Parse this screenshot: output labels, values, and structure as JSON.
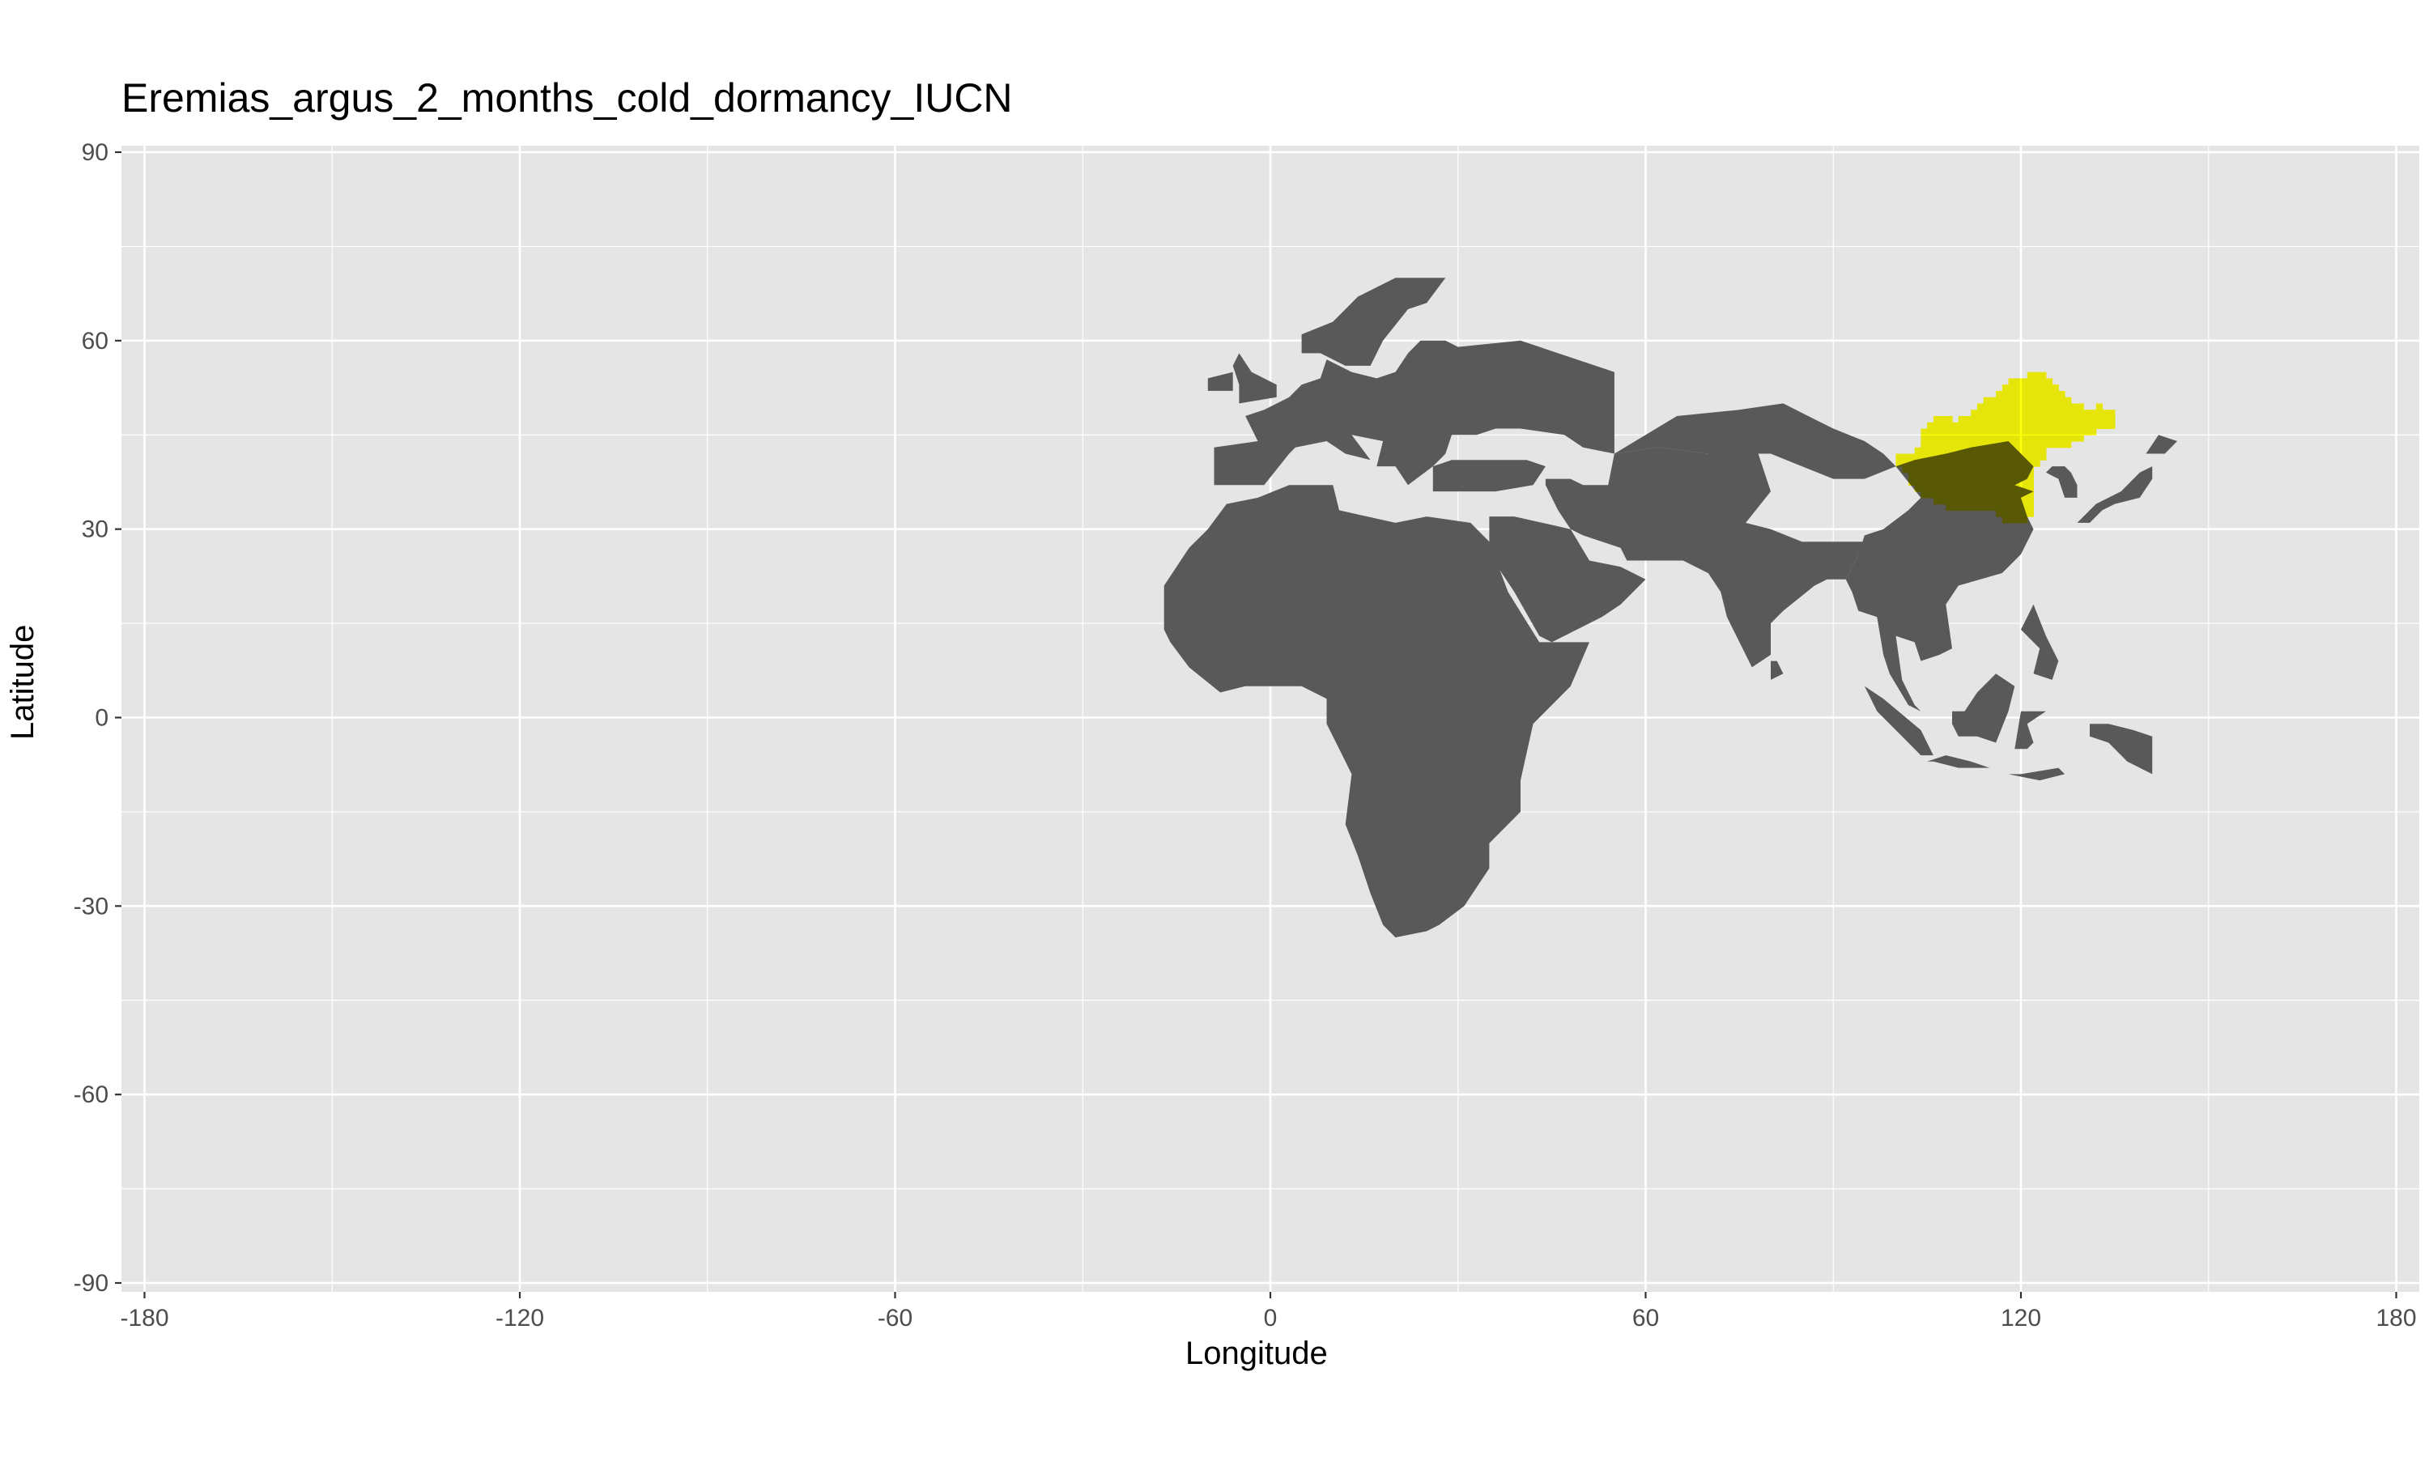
{
  "title": "Eremias_argus_2_months_cold_dormancy_IUCN",
  "x_axis": {
    "label": "Longitude",
    "ticks": [
      "-180",
      "-120",
      "-60",
      "0",
      "60",
      "120",
      "180"
    ]
  },
  "y_axis": {
    "label": "Latitude",
    "ticks": [
      "-90",
      "-60",
      "-30",
      "0",
      "30",
      "60",
      "90"
    ]
  },
  "map": {
    "extent": {
      "lon": [
        -180,
        180
      ],
      "lat": [
        -90,
        90
      ]
    },
    "background_color": "#e5e5e5",
    "grid_color": "#ffffff",
    "land_color": "#595959",
    "range_color": "#ffff00",
    "range_overlap_color": "#6b6b00",
    "layers": [
      "land-raster (Africa, Europe, Asia, Indonesia)",
      "species-range-raster (Eremias argus, IUCN)"
    ],
    "range_cells_lon_lat": [
      [
        100,
        41
      ],
      [
        100,
        40
      ],
      [
        101,
        41
      ],
      [
        101,
        40
      ],
      [
        101,
        39
      ],
      [
        102,
        41
      ],
      [
        102,
        40
      ],
      [
        102,
        39
      ],
      [
        102,
        38
      ],
      [
        102,
        37
      ],
      [
        103,
        42
      ],
      [
        103,
        41
      ],
      [
        103,
        40
      ],
      [
        103,
        39
      ],
      [
        103,
        38
      ],
      [
        103,
        37
      ],
      [
        103,
        36
      ],
      [
        104,
        45
      ],
      [
        104,
        44
      ],
      [
        104,
        43
      ],
      [
        104,
        42
      ],
      [
        104,
        41
      ],
      [
        104,
        40
      ],
      [
        104,
        39
      ],
      [
        104,
        38
      ],
      [
        104,
        37
      ],
      [
        104,
        36
      ],
      [
        104,
        35
      ],
      [
        105,
        46
      ],
      [
        105,
        45
      ],
      [
        105,
        44
      ],
      [
        105,
        43
      ],
      [
        105,
        42
      ],
      [
        105,
        41
      ],
      [
        105,
        40
      ],
      [
        105,
        39
      ],
      [
        105,
        38
      ],
      [
        105,
        37
      ],
      [
        105,
        36
      ],
      [
        105,
        35
      ],
      [
        106,
        47
      ],
      [
        106,
        46
      ],
      [
        106,
        45
      ],
      [
        106,
        44
      ],
      [
        106,
        43
      ],
      [
        106,
        42
      ],
      [
        106,
        41
      ],
      [
        106,
        40
      ],
      [
        106,
        39
      ],
      [
        106,
        38
      ],
      [
        106,
        37
      ],
      [
        106,
        36
      ],
      [
        106,
        35
      ],
      [
        106,
        34
      ],
      [
        107,
        47
      ],
      [
        107,
        46
      ],
      [
        107,
        45
      ],
      [
        107,
        44
      ],
      [
        107,
        43
      ],
      [
        107,
        42
      ],
      [
        107,
        41
      ],
      [
        107,
        40
      ],
      [
        107,
        39
      ],
      [
        107,
        38
      ],
      [
        107,
        37
      ],
      [
        107,
        36
      ],
      [
        107,
        35
      ],
      [
        107,
        34
      ],
      [
        108,
        47
      ],
      [
        108,
        46
      ],
      [
        108,
        45
      ],
      [
        108,
        44
      ],
      [
        108,
        43
      ],
      [
        108,
        42
      ],
      [
        108,
        41
      ],
      [
        108,
        40
      ],
      [
        108,
        39
      ],
      [
        108,
        38
      ],
      [
        108,
        37
      ],
      [
        108,
        36
      ],
      [
        108,
        35
      ],
      [
        108,
        34
      ],
      [
        108,
        33
      ],
      [
        109,
        46
      ],
      [
        109,
        45
      ],
      [
        109,
        44
      ],
      [
        109,
        43
      ],
      [
        109,
        42
      ],
      [
        109,
        41
      ],
      [
        109,
        40
      ],
      [
        109,
        39
      ],
      [
        109,
        38
      ],
      [
        109,
        37
      ],
      [
        109,
        36
      ],
      [
        109,
        35
      ],
      [
        109,
        34
      ],
      [
        109,
        33
      ],
      [
        110,
        47
      ],
      [
        110,
        46
      ],
      [
        110,
        45
      ],
      [
        110,
        44
      ],
      [
        110,
        43
      ],
      [
        110,
        42
      ],
      [
        110,
        41
      ],
      [
        110,
        40
      ],
      [
        110,
        39
      ],
      [
        110,
        38
      ],
      [
        110,
        37
      ],
      [
        110,
        36
      ],
      [
        110,
        35
      ],
      [
        110,
        34
      ],
      [
        110,
        33
      ],
      [
        111,
        47
      ],
      [
        111,
        46
      ],
      [
        111,
        45
      ],
      [
        111,
        44
      ],
      [
        111,
        43
      ],
      [
        111,
        42
      ],
      [
        111,
        41
      ],
      [
        111,
        40
      ],
      [
        111,
        39
      ],
      [
        111,
        38
      ],
      [
        111,
        37
      ],
      [
        111,
        36
      ],
      [
        111,
        35
      ],
      [
        111,
        34
      ],
      [
        111,
        33
      ],
      [
        112,
        48
      ],
      [
        112,
        47
      ],
      [
        112,
        46
      ],
      [
        112,
        45
      ],
      [
        112,
        44
      ],
      [
        112,
        43
      ],
      [
        112,
        42
      ],
      [
        112,
        41
      ],
      [
        112,
        40
      ],
      [
        112,
        39
      ],
      [
        112,
        38
      ],
      [
        112,
        37
      ],
      [
        112,
        36
      ],
      [
        112,
        35
      ],
      [
        112,
        34
      ],
      [
        112,
        33
      ],
      [
        113,
        49
      ],
      [
        113,
        48
      ],
      [
        113,
        47
      ],
      [
        113,
        46
      ],
      [
        113,
        45
      ],
      [
        113,
        44
      ],
      [
        113,
        43
      ],
      [
        113,
        42
      ],
      [
        113,
        41
      ],
      [
        113,
        40
      ],
      [
        113,
        39
      ],
      [
        113,
        38
      ],
      [
        113,
        37
      ],
      [
        113,
        36
      ],
      [
        113,
        35
      ],
      [
        113,
        34
      ],
      [
        113,
        33
      ],
      [
        114,
        50
      ],
      [
        114,
        49
      ],
      [
        114,
        48
      ],
      [
        114,
        47
      ],
      [
        114,
        46
      ],
      [
        114,
        45
      ],
      [
        114,
        44
      ],
      [
        114,
        43
      ],
      [
        114,
        42
      ],
      [
        114,
        41
      ],
      [
        114,
        40
      ],
      [
        114,
        39
      ],
      [
        114,
        38
      ],
      [
        114,
        37
      ],
      [
        114,
        36
      ],
      [
        114,
        35
      ],
      [
        114,
        34
      ],
      [
        114,
        33
      ],
      [
        115,
        50
      ],
      [
        115,
        49
      ],
      [
        115,
        48
      ],
      [
        115,
        47
      ],
      [
        115,
        46
      ],
      [
        115,
        45
      ],
      [
        115,
        44
      ],
      [
        115,
        43
      ],
      [
        115,
        42
      ],
      [
        115,
        41
      ],
      [
        115,
        40
      ],
      [
        115,
        39
      ],
      [
        115,
        38
      ],
      [
        115,
        37
      ],
      [
        115,
        36
      ],
      [
        115,
        35
      ],
      [
        115,
        34
      ],
      [
        115,
        33
      ],
      [
        116,
        51
      ],
      [
        116,
        50
      ],
      [
        116,
        49
      ],
      [
        116,
        48
      ],
      [
        116,
        47
      ],
      [
        116,
        46
      ],
      [
        116,
        45
      ],
      [
        116,
        44
      ],
      [
        116,
        43
      ],
      [
        116,
        42
      ],
      [
        116,
        41
      ],
      [
        116,
        40
      ],
      [
        116,
        39
      ],
      [
        116,
        38
      ],
      [
        116,
        37
      ],
      [
        116,
        36
      ],
      [
        116,
        35
      ],
      [
        116,
        34
      ],
      [
        116,
        33
      ],
      [
        116,
        32
      ],
      [
        117,
        52
      ],
      [
        117,
        51
      ],
      [
        117,
        50
      ],
      [
        117,
        49
      ],
      [
        117,
        48
      ],
      [
        117,
        47
      ],
      [
        117,
        46
      ],
      [
        117,
        45
      ],
      [
        117,
        44
      ],
      [
        117,
        43
      ],
      [
        117,
        42
      ],
      [
        117,
        41
      ],
      [
        117,
        40
      ],
      [
        117,
        39
      ],
      [
        117,
        38
      ],
      [
        117,
        37
      ],
      [
        117,
        36
      ],
      [
        117,
        35
      ],
      [
        117,
        34
      ],
      [
        117,
        33
      ],
      [
        117,
        32
      ],
      [
        117,
        31
      ],
      [
        118,
        53
      ],
      [
        118,
        52
      ],
      [
        118,
        51
      ],
      [
        118,
        50
      ],
      [
        118,
        49
      ],
      [
        118,
        48
      ],
      [
        118,
        47
      ],
      [
        118,
        46
      ],
      [
        118,
        45
      ],
      [
        118,
        44
      ],
      [
        118,
        43
      ],
      [
        118,
        42
      ],
      [
        118,
        41
      ],
      [
        118,
        40
      ],
      [
        118,
        39
      ],
      [
        118,
        38
      ],
      [
        118,
        37
      ],
      [
        118,
        36
      ],
      [
        118,
        35
      ],
      [
        118,
        34
      ],
      [
        118,
        33
      ],
      [
        118,
        32
      ],
      [
        118,
        31
      ],
      [
        119,
        53
      ],
      [
        119,
        52
      ],
      [
        119,
        51
      ],
      [
        119,
        50
      ],
      [
        119,
        49
      ],
      [
        119,
        48
      ],
      [
        119,
        47
      ],
      [
        119,
        46
      ],
      [
        119,
        45
      ],
      [
        119,
        44
      ],
      [
        119,
        43
      ],
      [
        119,
        42
      ],
      [
        119,
        41
      ],
      [
        119,
        40
      ],
      [
        119,
        39
      ],
      [
        119,
        38
      ],
      [
        119,
        37
      ],
      [
        119,
        36
      ],
      [
        119,
        35
      ],
      [
        119,
        34
      ],
      [
        119,
        33
      ],
      [
        119,
        32
      ],
      [
        119,
        31
      ],
      [
        120,
        53
      ],
      [
        120,
        52
      ],
      [
        120,
        51
      ],
      [
        120,
        50
      ],
      [
        120,
        49
      ],
      [
        120,
        48
      ],
      [
        120,
        47
      ],
      [
        120,
        46
      ],
      [
        120,
        45
      ],
      [
        120,
        44
      ],
      [
        120,
        43
      ],
      [
        120,
        42
      ],
      [
        120,
        41
      ],
      [
        120,
        40
      ],
      [
        120,
        39
      ],
      [
        120,
        38
      ],
      [
        120,
        37
      ],
      [
        120,
        36
      ],
      [
        120,
        35
      ],
      [
        120,
        34
      ],
      [
        120,
        33
      ],
      [
        120,
        32
      ],
      [
        120,
        31
      ],
      [
        121,
        54
      ],
      [
        121,
        53
      ],
      [
        121,
        52
      ],
      [
        121,
        51
      ],
      [
        121,
        50
      ],
      [
        121,
        49
      ],
      [
        121,
        48
      ],
      [
        121,
        47
      ],
      [
        121,
        46
      ],
      [
        121,
        45
      ],
      [
        121,
        44
      ],
      [
        121,
        43
      ],
      [
        121,
        42
      ],
      [
        121,
        41
      ],
      [
        121,
        40
      ],
      [
        121,
        39
      ],
      [
        121,
        38
      ],
      [
        121,
        37
      ],
      [
        121,
        36
      ],
      [
        121,
        35
      ],
      [
        121,
        34
      ],
      [
        121,
        33
      ],
      [
        121,
        32
      ],
      [
        122,
        54
      ],
      [
        122,
        53
      ],
      [
        122,
        52
      ],
      [
        122,
        51
      ],
      [
        122,
        50
      ],
      [
        122,
        49
      ],
      [
        122,
        48
      ],
      [
        122,
        47
      ],
      [
        122,
        46
      ],
      [
        122,
        45
      ],
      [
        122,
        44
      ],
      [
        122,
        43
      ],
      [
        122,
        42
      ],
      [
        122,
        41
      ],
      [
        122,
        40
      ],
      [
        123,
        54
      ],
      [
        123,
        53
      ],
      [
        123,
        52
      ],
      [
        123,
        51
      ],
      [
        123,
        50
      ],
      [
        123,
        49
      ],
      [
        123,
        48
      ],
      [
        123,
        47
      ],
      [
        123,
        46
      ],
      [
        123,
        45
      ],
      [
        123,
        44
      ],
      [
        123,
        43
      ],
      [
        123,
        42
      ],
      [
        123,
        41
      ],
      [
        124,
        53
      ],
      [
        124,
        52
      ],
      [
        124,
        51
      ],
      [
        124,
        50
      ],
      [
        124,
        49
      ],
      [
        124,
        48
      ],
      [
        124,
        47
      ],
      [
        124,
        46
      ],
      [
        124,
        45
      ],
      [
        124,
        44
      ],
      [
        124,
        43
      ],
      [
        125,
        52
      ],
      [
        125,
        51
      ],
      [
        125,
        50
      ],
      [
        125,
        49
      ],
      [
        125,
        48
      ],
      [
        125,
        47
      ],
      [
        125,
        46
      ],
      [
        125,
        45
      ],
      [
        125,
        44
      ],
      [
        125,
        43
      ],
      [
        126,
        51
      ],
      [
        126,
        50
      ],
      [
        126,
        49
      ],
      [
        126,
        48
      ],
      [
        126,
        47
      ],
      [
        126,
        46
      ],
      [
        126,
        45
      ],
      [
        126,
        44
      ],
      [
        126,
        43
      ],
      [
        127,
        50
      ],
      [
        127,
        49
      ],
      [
        127,
        48
      ],
      [
        127,
        47
      ],
      [
        127,
        46
      ],
      [
        127,
        45
      ],
      [
        127,
        44
      ],
      [
        127,
        43
      ],
      [
        128,
        49
      ],
      [
        128,
        48
      ],
      [
        128,
        47
      ],
      [
        128,
        46
      ],
      [
        128,
        45
      ],
      [
        128,
        44
      ],
      [
        129,
        49
      ],
      [
        129,
        48
      ],
      [
        129,
        47
      ],
      [
        129,
        46
      ],
      [
        129,
        45
      ],
      [
        129,
        44
      ],
      [
        130,
        48
      ],
      [
        130,
        47
      ],
      [
        130,
        46
      ],
      [
        130,
        45
      ],
      [
        131,
        48
      ],
      [
        131,
        47
      ],
      [
        131,
        46
      ],
      [
        131,
        45
      ],
      [
        132,
        49
      ],
      [
        132,
        48
      ],
      [
        132,
        47
      ],
      [
        132,
        46
      ],
      [
        133,
        48
      ],
      [
        133,
        47
      ],
      [
        133,
        46
      ],
      [
        134,
        48
      ],
      [
        134,
        47
      ],
      [
        134,
        46
      ]
    ]
  }
}
